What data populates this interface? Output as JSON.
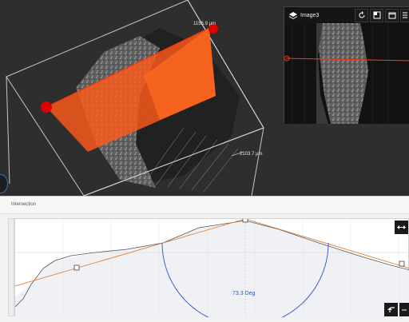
{
  "viewport": {
    "measurements": {
      "top": "1155.9 µm",
      "side": "2103.7 µm"
    },
    "colors": {
      "background": "#2e2e2e",
      "cut_plane": "#ff5a1a",
      "handle": "#e00000",
      "bounding_box": "#bfbfbf"
    }
  },
  "inset": {
    "title": "Image3",
    "icons": [
      "layers-icon",
      "rotate-icon",
      "split-icon",
      "window-icon",
      "menu-icon"
    ]
  },
  "intersection_panel": {
    "title": "Intersection",
    "angle_label": "73.3 Deg",
    "icons": [
      "fit-width-icon",
      "undo-icon",
      "more-icon"
    ]
  }
}
